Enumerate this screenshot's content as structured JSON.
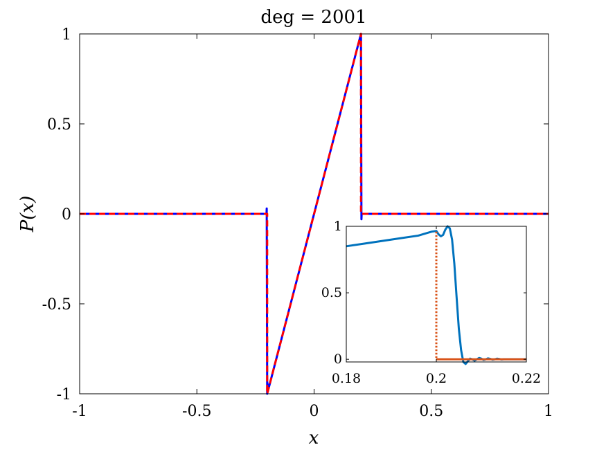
{
  "chart_data": [
    {
      "type": "line",
      "title": "deg = 2001",
      "xlabel": "x",
      "ylabel": "P(x)",
      "xlim": [
        -1,
        1
      ],
      "ylim": [
        -1,
        1
      ],
      "xticks": [
        -1,
        -0.5,
        0,
        0.5,
        1
      ],
      "xtick_labels": [
        "-1",
        "-0.5",
        "0",
        "0.5",
        "1"
      ],
      "yticks": [
        -1,
        -0.5,
        0,
        0.5,
        1
      ],
      "ytick_labels": [
        "-1",
        "-0.5",
        "0",
        "0.5",
        "1"
      ],
      "grid": false,
      "legend": "none",
      "colors": {
        "approximation": "#0000ff",
        "exact": "#ff0000"
      },
      "series": [
        {
          "style": "solid",
          "x": [
            -1,
            -0.203,
            -0.202,
            -0.2,
            -0.199,
            -0.197,
            0.197,
            0.199,
            0.2,
            0.202,
            0.203,
            1
          ],
          "y": [
            0,
            0,
            0.03,
            -1.0,
            -0.94,
            -0.985,
            0.985,
            0.94,
            1.0,
            -0.03,
            0,
            0
          ]
        },
        {
          "style": "dashed",
          "x": [
            -1,
            -0.2,
            -0.2,
            0.2,
            0.2,
            1
          ],
          "y": [
            0,
            0,
            -1,
            1,
            0,
            0
          ]
        }
      ]
    },
    {
      "type": "line",
      "title": "",
      "xlim": [
        0.18,
        0.22
      ],
      "ylim": [
        -0.02,
        1.0
      ],
      "xticks": [
        0.18,
        0.2,
        0.22
      ],
      "xtick_labels": [
        "0.18",
        "0.2",
        "0.22"
      ],
      "yticks": [
        0,
        0.5,
        1
      ],
      "ytick_labels": [
        "0",
        "0.5",
        "1"
      ],
      "grid": false,
      "colors": {
        "approximation": "#0072bd",
        "exact": "#d95319"
      },
      "series": [
        {
          "style": "solid",
          "x": [
            0.18,
            0.184,
            0.188,
            0.192,
            0.196,
            0.198,
            0.199,
            0.2,
            0.2005,
            0.201,
            0.2015,
            0.202,
            0.2025,
            0.203,
            0.2035,
            0.204,
            0.2045,
            0.205,
            0.2055,
            0.206,
            0.2065,
            0.207,
            0.2075,
            0.208,
            0.2085,
            0.209,
            0.2095,
            0.21,
            0.2105,
            0.211,
            0.2115,
            0.212,
            0.2125,
            0.213,
            0.2135,
            0.214,
            0.2145,
            0.215,
            0.216,
            0.218,
            0.22
          ],
          "y": [
            0.85,
            0.87,
            0.89,
            0.91,
            0.93,
            0.95,
            0.96,
            0.965,
            0.94,
            0.925,
            0.935,
            0.975,
            1.0,
            0.985,
            0.9,
            0.72,
            0.47,
            0.23,
            0.07,
            -0.02,
            -0.035,
            -0.015,
            0.005,
            0.0,
            -0.01,
            0.0,
            0.01,
            0.005,
            -0.005,
            0.0,
            0.007,
            0.003,
            -0.003,
            0.0,
            0.005,
            0.002,
            -0.002,
            0.0,
            0.0,
            0.0,
            0.0
          ]
        },
        {
          "style": "dotted",
          "x": [
            0.2,
            0.2
          ],
          "y": [
            0.96,
            0.0
          ]
        },
        {
          "style": "solid",
          "x": [
            0.2,
            0.22
          ],
          "y": [
            0.0,
            0.0
          ]
        }
      ]
    }
  ]
}
